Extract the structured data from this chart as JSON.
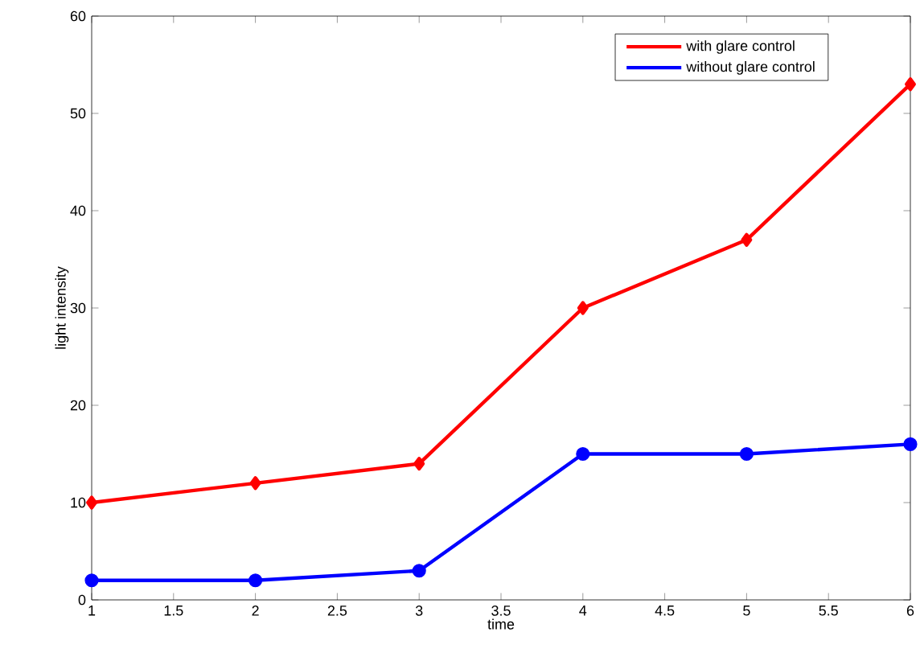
{
  "chart_data": {
    "type": "line",
    "xlabel": "time",
    "ylabel": "light intensity",
    "x": [
      1,
      2,
      3,
      4,
      5,
      6
    ],
    "series": [
      {
        "name": "with glare control",
        "color": "#ff0000",
        "marker": "diamond",
        "values": [
          10,
          12,
          14,
          30,
          37,
          53
        ]
      },
      {
        "name": "without glare control",
        "color": "#0000ff",
        "marker": "circle",
        "values": [
          2,
          2,
          3,
          15,
          15,
          16
        ]
      }
    ],
    "xlim": [
      1,
      6
    ],
    "ylim": [
      0,
      60
    ],
    "xticks": [
      1,
      1.5,
      2,
      2.5,
      3,
      3.5,
      4,
      4.5,
      5,
      5.5,
      6
    ],
    "yticks": [
      0,
      10,
      20,
      30,
      40,
      50,
      60
    ],
    "grid": false,
    "legend": "top right"
  }
}
